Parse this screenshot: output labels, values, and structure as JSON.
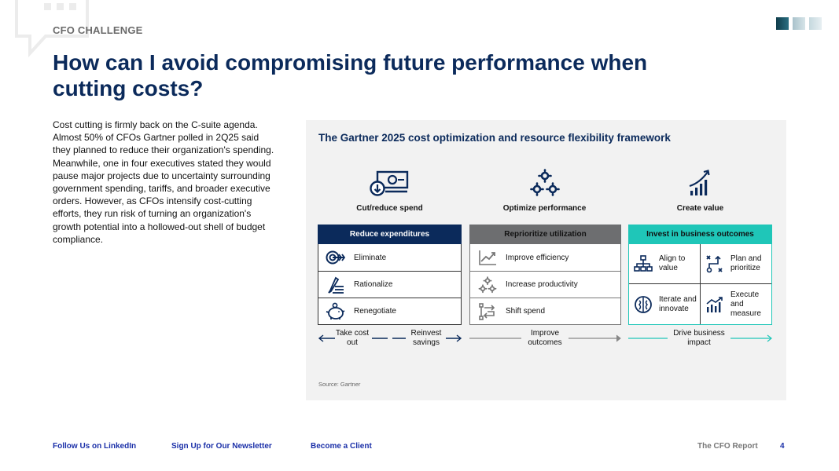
{
  "header": {
    "eyebrow": "CFO CHALLENGE",
    "title": "How can I avoid compromising future performance when cutting costs?"
  },
  "brand_colors": [
    "#0f3c4a",
    "#a9c2cb",
    "#c5d8de"
  ],
  "intro": "Cost cutting is firmly back on the C-suite agenda. Almost 50% of CFOs Gartner polled in 2Q25 said they planned to reduce their organization's spending. Meanwhile, one in four executives stated they would pause major projects due to uncertainty surrounding government spending, tariffs, and broader executive orders. However, as CFOs intensify cost-cutting efforts, they run risk of turning an organization's growth potential into a hollowed-out shell of budget compliance.",
  "framework": {
    "title": "The Gartner 2025 cost optimization and resource flexibility framework",
    "pillars": [
      {
        "label": "Cut/reduce spend",
        "icon": "money-bill-down-icon"
      },
      {
        "label": "Optimize performance",
        "icon": "gears-icon"
      },
      {
        "label": "Create value",
        "icon": "growth-chart-icon"
      }
    ],
    "columns": [
      {
        "header": "Reduce expenditures",
        "header_bg": "#0b2a5b",
        "header_color": "#ffffff",
        "items": [
          {
            "label": "Eliminate",
            "icon": "eliminate-icon"
          },
          {
            "label": "Rationalize",
            "icon": "pen-list-icon"
          },
          {
            "label": "Renegotiate",
            "icon": "piggy-bank-icon"
          }
        ]
      },
      {
        "header": "Reprioritize utilization",
        "header_bg": "#6d6e70",
        "header_color": "#111111",
        "items": [
          {
            "label": "Improve efficiency",
            "icon": "trend-up-icon"
          },
          {
            "label": "Increase productivity",
            "icon": "gears-icon"
          },
          {
            "label": "Shift spend",
            "icon": "shift-arrows-icon"
          }
        ]
      },
      {
        "header": "Invest in business outcomes",
        "header_bg": "#1fc6b8",
        "header_color": "#111111",
        "items": [
          {
            "label": "Align to value",
            "icon": "org-chart-icon"
          },
          {
            "label": "Plan and prioritize",
            "icon": "strategy-icon"
          },
          {
            "label": "Iterate and innovate",
            "icon": "brain-icon"
          },
          {
            "label": "Execute and measure",
            "icon": "bar-trend-icon"
          }
        ]
      }
    ],
    "flows": [
      {
        "left": "Take cost out",
        "right": "Reinvest savings"
      },
      {
        "center": "Improve outcomes"
      },
      {
        "center": "Drive business impact"
      }
    ],
    "source": "Source: Gartner"
  },
  "footer": {
    "links": [
      "Follow Us on LinkedIn",
      "Sign Up for Our Newsletter",
      "Become a Client"
    ],
    "report": "The CFO Report",
    "page": "4"
  }
}
